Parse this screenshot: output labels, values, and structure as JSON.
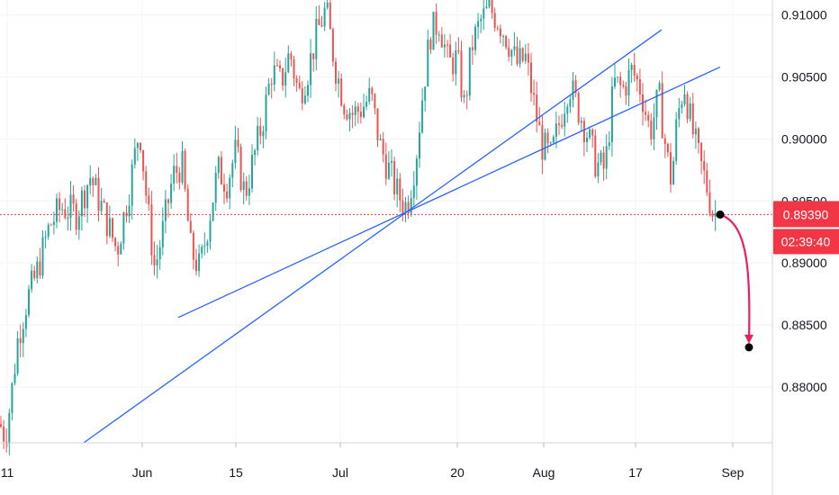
{
  "colors": {
    "up": "#26a69a",
    "down": "#ef5350",
    "trendline": "#2962ff",
    "price_line": "#f23645",
    "projection": "#e91e63",
    "grid": "#f0f3fa",
    "axis_text": "#131722",
    "tag_bg": "#f23645"
  },
  "chart_data": {
    "type": "candlestick",
    "x_labels": [
      "11",
      "Jun",
      "15",
      "Jul",
      "20",
      "Aug",
      "17",
      "Sep"
    ],
    "y_ticks": [
      "0.91000",
      "0.90500",
      "0.90000",
      "0.89500",
      "0.89000",
      "0.88500",
      "0.88000"
    ],
    "ylim": [
      0.8755,
      0.9112
    ],
    "grid": true,
    "last_price": "0.89390",
    "countdown": "02:39:40",
    "close_path": [
      [
        0,
        0.877
      ],
      [
        6,
        0.876
      ],
      [
        12,
        0.879
      ],
      [
        20,
        0.884
      ],
      [
        30,
        0.887
      ],
      [
        40,
        0.889
      ],
      [
        55,
        0.893
      ],
      [
        68,
        0.8945
      ],
      [
        85,
        0.894
      ],
      [
        100,
        0.897
      ],
      [
        118,
        0.8935
      ],
      [
        130,
        0.891
      ],
      [
        145,
        0.8965
      ],
      [
        155,
        0.901
      ],
      [
        163,
        0.895
      ],
      [
        172,
        0.8895
      ],
      [
        182,
        0.893
      ],
      [
        192,
        0.897
      ],
      [
        202,
        0.898
      ],
      [
        212,
        0.891
      ],
      [
        222,
        0.8895
      ],
      [
        232,
        0.8935
      ],
      [
        242,
        0.8975
      ],
      [
        252,
        0.8965
      ],
      [
        262,
        0.899
      ],
      [
        272,
        0.8955
      ],
      [
        282,
        0.8985
      ],
      [
        292,
        0.9015
      ],
      [
        302,
        0.9055
      ],
      [
        312,
        0.9045
      ],
      [
        322,
        0.907
      ],
      [
        332,
        0.9035
      ],
      [
        342,
        0.9055
      ],
      [
        352,
        0.9085
      ],
      [
        362,
        0.9105
      ],
      [
        372,
        0.906
      ],
      [
        382,
        0.903
      ],
      [
        392,
        0.902
      ],
      [
        402,
        0.9025
      ],
      [
        412,
        0.9035
      ],
      [
        422,
        0.8995
      ],
      [
        432,
        0.8975
      ],
      [
        442,
        0.8955
      ],
      [
        452,
        0.8945
      ],
      [
        462,
        0.8985
      ],
      [
        470,
        0.904
      ],
      [
        478,
        0.9085
      ],
      [
        488,
        0.9095
      ],
      [
        498,
        0.906
      ],
      [
        508,
        0.9065
      ],
      [
        516,
        0.9025
      ],
      [
        524,
        0.9075
      ],
      [
        534,
        0.9095
      ],
      [
        544,
        0.9105
      ],
      [
        554,
        0.9095
      ],
      [
        564,
        0.908
      ],
      [
        574,
        0.906
      ],
      [
        584,
        0.9065
      ],
      [
        594,
        0.9025
      ],
      [
        602,
        0.8995
      ],
      [
        612,
        0.8985
      ],
      [
        622,
        0.9015
      ],
      [
        632,
        0.9045
      ],
      [
        642,
        0.9025
      ],
      [
        652,
        0.9005
      ],
      [
        662,
        0.898
      ],
      [
        672,
        0.8975
      ],
      [
        682,
        0.9045
      ],
      [
        692,
        0.904
      ],
      [
        702,
        0.9055
      ],
      [
        712,
        0.904
      ],
      [
        722,
        0.9005
      ],
      [
        732,
        0.9035
      ],
      [
        740,
        0.899
      ],
      [
        746,
        0.8965
      ],
      [
        752,
        0.9015
      ],
      [
        760,
        0.9045
      ],
      [
        768,
        0.901
      ],
      [
        776,
        0.8985
      ],
      [
        784,
        0.8965
      ],
      [
        792,
        0.894
      ],
      [
        797,
        0.8939
      ]
    ],
    "trendlines": [
      {
        "from": [
          93,
          0.8755
        ],
        "to": [
          735,
          0.9088
        ]
      },
      {
        "from": [
          198,
          0.8856
        ],
        "to": [
          800,
          0.9058
        ]
      }
    ],
    "projection": {
      "from": [
        800,
        0.8939
      ],
      "to": [
        832,
        0.8832
      ]
    }
  }
}
